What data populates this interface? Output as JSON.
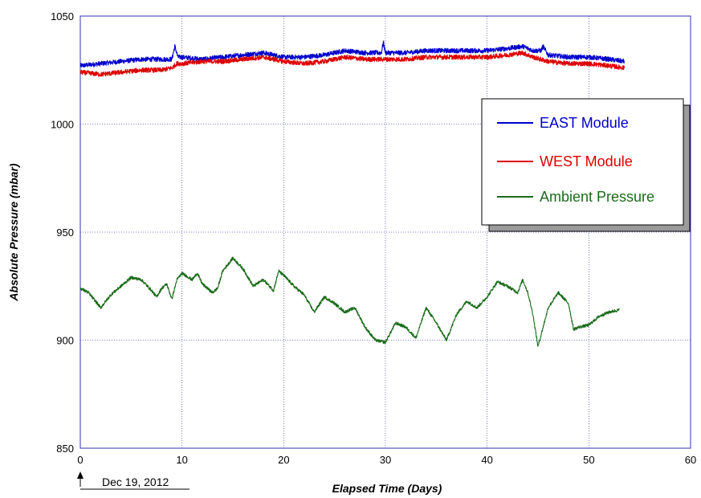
{
  "chart_data": {
    "type": "line",
    "title": "",
    "xlabel": "Elapsed Time (Days)",
    "ylabel": "Absolute Pressure (mbar)",
    "xlim": [
      0,
      60
    ],
    "ylim": [
      850,
      1050
    ],
    "x_ticks": [
      "0",
      "10",
      "20",
      "30",
      "40",
      "50",
      "60"
    ],
    "y_ticks": [
      "850",
      "900",
      "950",
      "1000",
      "1050"
    ],
    "grid": true,
    "grid_style": "dotted",
    "legend_position": "right",
    "annotation": {
      "text": "Dec 19, 2012",
      "x": 0
    },
    "series": [
      {
        "name": "EAST Module",
        "color": "#0000cc",
        "x": [
          0,
          2,
          4,
          6,
          8,
          9,
          9.3,
          9.6,
          10,
          12,
          14,
          16,
          18,
          20,
          22,
          24,
          26,
          28,
          29.6,
          29.8,
          30,
          32,
          34,
          36,
          38,
          40,
          42,
          43.5,
          44.5,
          45.3,
          45.5,
          46,
          48,
          50,
          52,
          53.5
        ],
        "y": [
          1027,
          1028,
          1029,
          1030,
          1030,
          1030,
          1036,
          1031,
          1031,
          1030,
          1031,
          1032,
          1033,
          1031,
          1031,
          1032,
          1034,
          1033,
          1033,
          1038,
          1033,
          1033,
          1034,
          1034,
          1034,
          1034,
          1035,
          1036,
          1034,
          1034,
          1036,
          1032,
          1031,
          1031,
          1030,
          1029
        ]
      },
      {
        "name": "WEST Module",
        "color": "#dd0000",
        "x": [
          0,
          2,
          4,
          6,
          8,
          9,
          9.5,
          10,
          12,
          14,
          16,
          18,
          20,
          22,
          24,
          26,
          28,
          30,
          32,
          34,
          36,
          38,
          40,
          42,
          43.5,
          44.5,
          46,
          48,
          50,
          52,
          53.5
        ],
        "y": [
          1024,
          1023,
          1024,
          1025,
          1025,
          1026,
          1028,
          1028,
          1029,
          1029,
          1030,
          1031,
          1029,
          1028,
          1029,
          1031,
          1030,
          1030,
          1030,
          1031,
          1031,
          1031,
          1031,
          1032,
          1033,
          1031,
          1029,
          1028,
          1028,
          1027,
          1026
        ]
      },
      {
        "name": "Ambient Pressure",
        "color": "#1a6b1a",
        "x": [
          0,
          0.8,
          1.5,
          2,
          3,
          4,
          5,
          6,
          7,
          7.5,
          8,
          8.5,
          9,
          9.5,
          10,
          11,
          11.5,
          12,
          13,
          13.5,
          14,
          15,
          16,
          17,
          18,
          19,
          19.5,
          20,
          21,
          22,
          23,
          24,
          25,
          26,
          27,
          28,
          29,
          30,
          31,
          32,
          33,
          34,
          35,
          36,
          37,
          38,
          39,
          40,
          41,
          42,
          43,
          43.5,
          44,
          44.5,
          45,
          46,
          47,
          48,
          48.5,
          49,
          50,
          51,
          52,
          53
        ],
        "y": [
          924,
          922,
          918,
          915,
          921,
          925,
          929,
          928,
          923,
          920,
          924,
          926,
          919,
          928,
          931,
          928,
          931,
          926,
          922,
          924,
          932,
          938,
          933,
          925,
          928,
          923,
          932,
          930,
          925,
          921,
          913,
          920,
          917,
          913,
          915,
          906,
          900,
          899,
          908,
          906,
          901,
          915,
          908,
          900,
          912,
          918,
          915,
          920,
          927,
          925,
          922,
          928,
          922,
          912,
          897,
          915,
          922,
          917,
          905,
          906,
          907,
          911,
          913,
          914
        ]
      }
    ]
  }
}
